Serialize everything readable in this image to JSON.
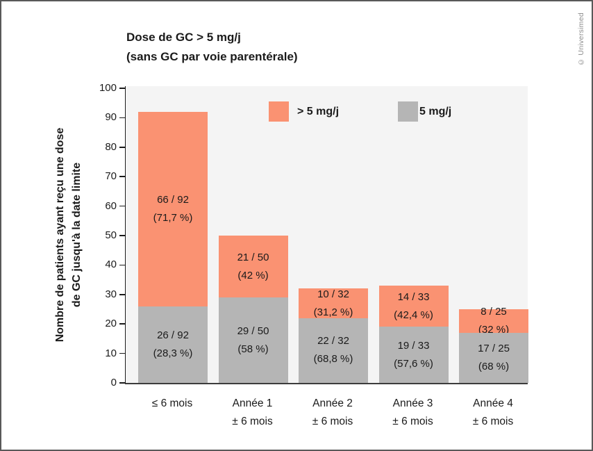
{
  "copyright": "© Universimed",
  "chart_data": {
    "type": "bar",
    "stacked": true,
    "title_line1": "Dose de GC > 5 mg/j",
    "title_line2": "(sans GC par voie parentérale)",
    "ylabel_line1": "Nombre de patients ayant reçu une dose",
    "ylabel_line2": "de GC jusqu'à la date limite",
    "ylim": [
      0,
      100
    ],
    "yticks": [
      0,
      10,
      20,
      30,
      40,
      50,
      60,
      70,
      80,
      90,
      100
    ],
    "grid": false,
    "legend_position": "top-inside",
    "plot_background": "#f4f4f4",
    "legend": [
      {
        "label": "> 5 mg/j",
        "color": "#fa9272"
      },
      {
        "label": "5 mg/j",
        "color": "#b5b5b5"
      }
    ],
    "categories": [
      {
        "line1": "≤ 6 mois",
        "line2": ""
      },
      {
        "line1": "Année 1",
        "line2": "± 6 mois"
      },
      {
        "line1": "Année 2",
        "line2": "± 6 mois"
      },
      {
        "line1": "Année 3",
        "line2": "± 6 mois"
      },
      {
        "line1": "Année 4",
        "line2": "± 6 mois"
      }
    ],
    "series": [
      {
        "name": "5 mg/j",
        "color": "#b5b5b5",
        "values": [
          26,
          29,
          22,
          19,
          17
        ],
        "labels": [
          [
            "26 / 92",
            "(28,3 %)"
          ],
          [
            "29 / 50",
            "(58 %)"
          ],
          [
            "22 / 32",
            "(68,8 %)"
          ],
          [
            "19 / 33",
            "(57,6 %)"
          ],
          [
            "17 / 25",
            "(68 %)"
          ]
        ]
      },
      {
        "name": "> 5 mg/j",
        "color": "#fa9272",
        "values": [
          66,
          21,
          10,
          14,
          8
        ],
        "labels": [
          [
            "66 / 92",
            "(71,7 %)"
          ],
          [
            "21 / 50",
            "(42 %)"
          ],
          [
            "10 / 32",
            "(31,2 %)"
          ],
          [
            "14 / 33",
            "(42,4 %)"
          ],
          [
            "8 / 25",
            "(32 %)"
          ]
        ]
      }
    ],
    "totals": [
      92,
      50,
      32,
      33,
      25
    ]
  }
}
